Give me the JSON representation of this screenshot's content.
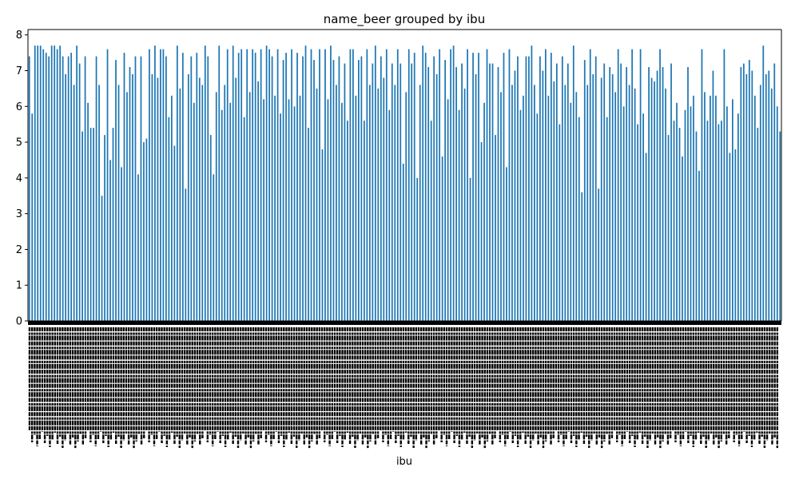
{
  "chart_data": {
    "type": "bar",
    "title": "name_beer grouped by ibu",
    "xlabel": "ibu",
    "ylabel": "",
    "ylim": [
      0,
      8.15
    ],
    "yticks": [
      0,
      1,
      2,
      3,
      4,
      5,
      6,
      7,
      8
    ],
    "grid": false,
    "legend": "none",
    "bar_color": "#1f77b4",
    "x_tick_labels_note": "dense overlapping rotated tick labels, illegible in screenshot",
    "values": [
      7.4,
      5.8,
      7.7,
      7.7,
      7.7,
      7.6,
      7.5,
      7.4,
      7.7,
      7.7,
      7.6,
      7.7,
      7.4,
      6.9,
      7.4,
      7.5,
      6.6,
      7.7,
      7.2,
      5.3,
      7.4,
      6.1,
      5.4,
      5.4,
      7.4,
      6.6,
      3.5,
      5.2,
      7.6,
      4.5,
      5.4,
      7.3,
      6.6,
      4.3,
      7.5,
      6.4,
      7.1,
      6.9,
      7.4,
      4.1,
      7.4,
      5.0,
      5.1,
      7.6,
      6.9,
      7.7,
      6.8,
      7.6,
      7.6,
      7.4,
      5.7,
      6.3,
      4.9,
      7.7,
      6.5,
      7.5,
      3.7,
      6.9,
      7.4,
      6.1,
      7.5,
      6.8,
      6.6,
      7.7,
      7.4,
      5.2,
      4.1,
      6.4,
      7.7,
      5.9,
      6.6,
      7.6,
      6.1,
      7.7,
      6.8,
      7.5,
      7.6,
      5.7,
      7.6,
      6.4,
      7.6,
      7.5,
      6.7,
      7.6,
      6.2,
      7.7,
      7.6,
      7.4,
      6.3,
      7.6,
      5.8,
      7.3,
      7.5,
      6.2,
      7.6,
      6.0,
      7.5,
      6.3,
      7.4,
      7.7,
      5.4,
      7.6,
      7.3,
      6.5,
      7.6,
      4.8,
      7.6,
      6.2,
      7.7,
      7.3,
      6.6,
      7.4,
      6.1,
      7.2,
      5.6,
      7.6,
      7.6,
      6.3,
      7.3,
      7.4,
      5.6,
      7.6,
      6.6,
      7.2,
      7.7,
      6.5,
      7.4,
      6.8,
      7.6,
      5.9,
      7.2,
      6.6,
      7.6,
      7.2,
      4.4,
      6.4,
      7.6,
      7.2,
      7.5,
      4.0,
      6.6,
      7.7,
      7.5,
      7.1,
      5.6,
      7.4,
      6.9,
      7.6,
      4.6,
      7.3,
      6.2,
      7.6,
      7.7,
      7.1,
      5.9,
      7.2,
      6.5,
      7.6,
      4.0,
      7.5,
      6.9,
      7.5,
      5.0,
      6.1,
      7.6,
      7.2,
      7.2,
      5.2,
      7.1,
      6.4,
      7.5,
      4.3,
      7.6,
      6.6,
      7.0,
      7.4,
      5.9,
      6.3,
      7.4,
      7.4,
      7.7,
      6.6,
      5.8,
      7.4,
      7.0,
      7.6,
      6.3,
      7.5,
      6.7,
      7.2,
      5.5,
      7.4,
      6.6,
      7.2,
      6.1,
      7.7,
      6.4,
      5.7,
      3.6,
      7.3,
      6.6,
      7.6,
      6.9,
      7.4,
      3.7,
      6.8,
      7.2,
      5.7,
      7.1,
      6.9,
      6.4,
      7.6,
      7.2,
      6.0,
      7.1,
      6.6,
      7.6,
      6.5,
      5.5,
      7.6,
      5.8,
      4.7,
      7.1,
      6.8,
      6.7,
      7.0,
      7.6,
      7.1,
      6.5,
      5.2,
      7.2,
      5.6,
      6.1,
      5.4,
      4.6,
      5.9,
      7.1,
      6.0,
      6.3,
      5.3,
      4.2,
      7.6,
      6.4,
      5.6,
      6.3,
      7.0,
      6.3,
      5.5,
      5.6,
      7.6,
      6.0,
      4.7,
      6.2,
      4.8,
      5.8,
      7.1,
      7.2,
      6.9,
      7.3,
      7.0,
      6.3,
      5.4,
      6.6,
      7.7,
      6.9,
      7.0,
      6.5,
      7.2,
      6.0,
      5.3
    ]
  }
}
